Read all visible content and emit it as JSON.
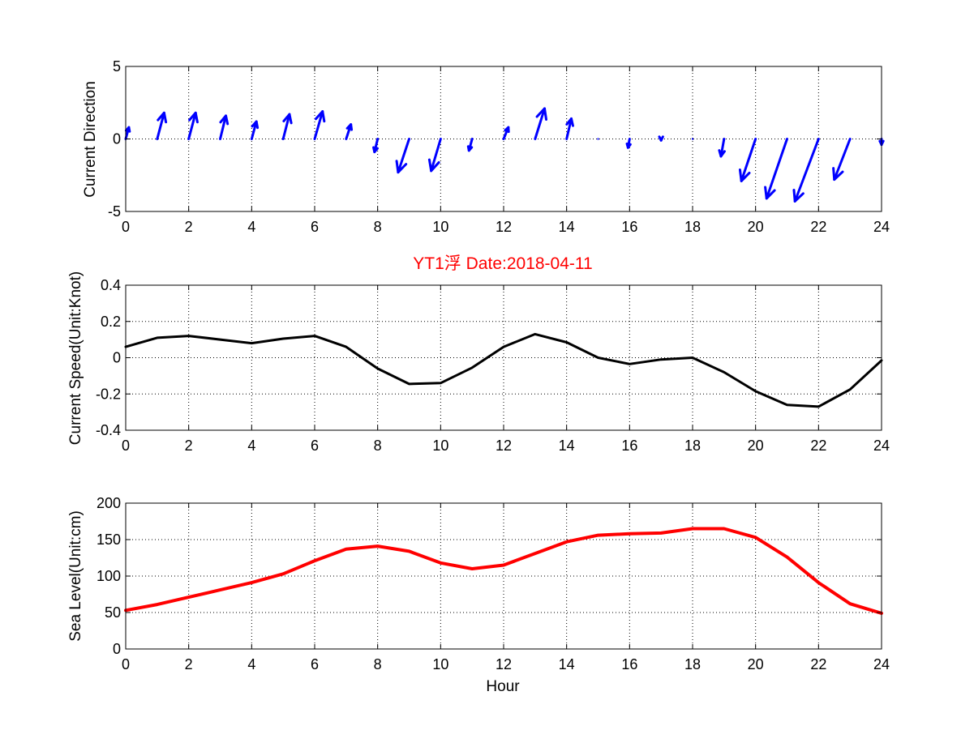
{
  "colors": {
    "direction": "#0000ff",
    "speed": "#000000",
    "level": "#ff0000",
    "title": "#ff0000"
  },
  "chart_data": [
    {
      "type": "quiver",
      "ylabel": "Current Direction",
      "xlim": [
        0,
        24
      ],
      "ylim": [
        -5,
        5
      ],
      "xticks": [
        0,
        2,
        4,
        6,
        8,
        10,
        12,
        14,
        16,
        18,
        20,
        22,
        24
      ],
      "yticks": [
        -5,
        0,
        5
      ],
      "grid": true,
      "x": [
        0,
        1,
        2,
        3,
        4,
        5,
        6,
        7,
        8,
        9,
        10,
        11,
        12,
        13,
        14,
        15,
        16,
        17,
        18,
        19,
        20,
        21,
        22,
        23,
        24
      ],
      "u": [
        0.1,
        0.22,
        0.22,
        0.18,
        0.15,
        0.2,
        0.25,
        0.15,
        -0.1,
        -0.35,
        -0.3,
        -0.1,
        0.15,
        0.3,
        0.15,
        0,
        -0.05,
        0,
        0,
        -0.1,
        -0.45,
        -0.65,
        -0.75,
        -0.5,
        0
      ],
      "v": [
        0.8,
        1.8,
        1.8,
        1.6,
        1.2,
        1.7,
        1.9,
        1.0,
        -0.9,
        -2.3,
        -2.2,
        -0.8,
        0.8,
        2.1,
        1.4,
        0,
        -0.6,
        -0.1,
        0,
        -1.2,
        -2.9,
        -4.1,
        -4.3,
        -2.8,
        -0.4
      ]
    },
    {
      "type": "line",
      "title": "YT1浮   Date:2018-04-11",
      "ylabel": "Current Speed(Unit:Knot)",
      "xlim": [
        0,
        24
      ],
      "ylim": [
        -0.4,
        0.4
      ],
      "xticks": [
        0,
        2,
        4,
        6,
        8,
        10,
        12,
        14,
        16,
        18,
        20,
        22,
        24
      ],
      "yticks": [
        -0.4,
        -0.2,
        0,
        0.2,
        0.4
      ],
      "grid": true,
      "series": [
        {
          "x": [
            0,
            1,
            2,
            3,
            4,
            5,
            6,
            7,
            8,
            9,
            10,
            11,
            12,
            13,
            14,
            15,
            16,
            17,
            18,
            19,
            20,
            21,
            22,
            23,
            24
          ],
          "values": [
            0.06,
            0.11,
            0.12,
            0.1,
            0.08,
            0.105,
            0.12,
            0.06,
            -0.06,
            -0.145,
            -0.14,
            -0.055,
            0.06,
            0.13,
            0.085,
            0.0,
            -0.035,
            -0.01,
            0.0,
            -0.08,
            -0.185,
            -0.26,
            -0.27,
            -0.175,
            -0.015
          ]
        }
      ]
    },
    {
      "type": "line",
      "xlabel": "Hour",
      "ylabel": "Sea Level(Unit:cm)",
      "xlim": [
        0,
        24
      ],
      "ylim": [
        0,
        200
      ],
      "xticks": [
        0,
        2,
        4,
        6,
        8,
        10,
        12,
        14,
        16,
        18,
        20,
        22,
        24
      ],
      "yticks": [
        0,
        50,
        100,
        150,
        200
      ],
      "grid": true,
      "series": [
        {
          "x": [
            0,
            1,
            2,
            3,
            4,
            5,
            6,
            7,
            8,
            9,
            10,
            11,
            12,
            13,
            14,
            15,
            16,
            17,
            18,
            19,
            20,
            21,
            22,
            23,
            24
          ],
          "values": [
            53,
            61,
            71,
            81,
            91,
            103,
            121,
            137,
            141,
            134,
            118,
            110,
            115,
            131,
            147,
            156,
            158,
            159,
            165,
            165,
            153,
            126,
            91,
            62,
            49
          ]
        }
      ]
    }
  ]
}
